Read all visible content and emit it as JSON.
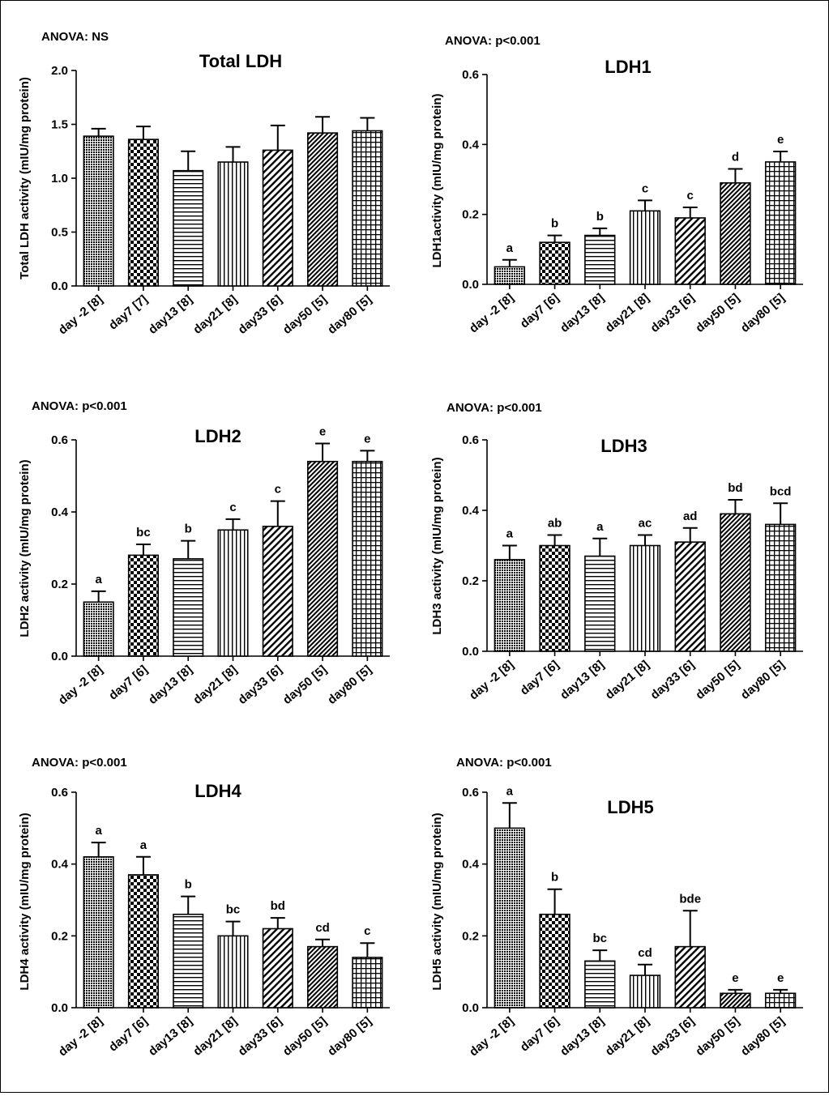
{
  "chart_data": [
    {
      "type": "bar",
      "title": "Total LDH",
      "annotation": "ANOVA: NS",
      "ylabel": "Total LDH activity (mIU/mg protein)",
      "ylim": [
        0,
        2.0
      ],
      "yticks": [
        "0.0",
        "0.5",
        "1.0",
        "1.5",
        "2.0"
      ],
      "categories": [
        "day -2 [8]",
        "day7 [7]",
        "day13 [8]",
        "day21 [8]",
        "day33 [6]",
        "day50 [5]",
        "day80 [5]"
      ],
      "values": [
        1.39,
        1.36,
        1.07,
        1.15,
        1.26,
        1.42,
        1.44
      ],
      "errors": [
        0.07,
        0.12,
        0.18,
        0.14,
        0.23,
        0.15,
        0.12
      ],
      "letters": [
        "",
        "",
        "",
        "",
        "",
        "",
        ""
      ]
    },
    {
      "type": "bar",
      "title": "LDH1",
      "annotation": "ANOVA: p<0.001",
      "ylabel": "LDH1activity (mIU/mg protein)",
      "ylim": [
        0,
        0.6
      ],
      "yticks": [
        "0.0",
        "0.2",
        "0.4",
        "0.6"
      ],
      "categories": [
        "day -2 [8]",
        "day7 [6]",
        "day13 [8]",
        "day21 [8]",
        "day33 [6]",
        "day50 [5]",
        "day80 [5]"
      ],
      "values": [
        0.05,
        0.12,
        0.14,
        0.21,
        0.19,
        0.29,
        0.35
      ],
      "errors": [
        0.02,
        0.02,
        0.02,
        0.03,
        0.03,
        0.04,
        0.03
      ],
      "letters": [
        "a",
        "b",
        "b",
        "c",
        "c",
        "d",
        "e"
      ]
    },
    {
      "type": "bar",
      "title": "LDH2",
      "annotation": "ANOVA: p<0.001",
      "ylabel": "LDH2 activity (mIU/mg protein)",
      "ylim": [
        0,
        0.6
      ],
      "yticks": [
        "0.0",
        "0.2",
        "0.4",
        "0.6"
      ],
      "categories": [
        "day -2 [8]",
        "day7 [6]",
        "day13 [8]",
        "day21 [8]",
        "day33 [6]",
        "day50 [5]",
        "day80 [5]"
      ],
      "values": [
        0.15,
        0.28,
        0.27,
        0.35,
        0.36,
        0.54,
        0.54
      ],
      "errors": [
        0.03,
        0.03,
        0.05,
        0.03,
        0.07,
        0.05,
        0.03
      ],
      "letters": [
        "a",
        "bc",
        "b",
        "c",
        "c",
        "e",
        "e"
      ]
    },
    {
      "type": "bar",
      "title": "LDH3",
      "annotation": "ANOVA: p<0.001",
      "ylabel": "LDH3 activity (mIU/mg protein)",
      "ylim": [
        0,
        0.6
      ],
      "yticks": [
        "0.0",
        "0.2",
        "0.4",
        "0.6"
      ],
      "categories": [
        "day -2 [8]",
        "day7 [6]",
        "day13 [8]",
        "day21 [8]",
        "day33 [6]",
        "day50 [5]",
        "day80 [5]"
      ],
      "values": [
        0.26,
        0.3,
        0.27,
        0.3,
        0.31,
        0.39,
        0.36
      ],
      "errors": [
        0.04,
        0.03,
        0.05,
        0.03,
        0.04,
        0.04,
        0.06
      ],
      "letters": [
        "a",
        "ab",
        "a",
        "ac",
        "ad",
        "bd",
        "bcd"
      ]
    },
    {
      "type": "bar",
      "title": "LDH4",
      "annotation": "ANOVA: p<0.001",
      "ylabel": "LDH4 activity (mIU/mg protein)",
      "ylim": [
        0,
        0.6
      ],
      "yticks": [
        "0.0",
        "0.2",
        "0.4",
        "0.6"
      ],
      "categories": [
        "day -2 [8]",
        "day7 [6]",
        "day13 [8]",
        "day21 [8]",
        "day33 [6]",
        "day50 [5]",
        "day80 [5]"
      ],
      "values": [
        0.42,
        0.37,
        0.26,
        0.2,
        0.22,
        0.17,
        0.14
      ],
      "errors": [
        0.04,
        0.05,
        0.05,
        0.04,
        0.03,
        0.02,
        0.04
      ],
      "letters": [
        "a",
        "a",
        "b",
        "bc",
        "bd",
        "cd",
        "c"
      ]
    },
    {
      "type": "bar",
      "title": "LDH5",
      "annotation": "ANOVA: p<0.001",
      "ylabel": "LDH5 activity (mIU/mg protein)",
      "ylim": [
        0,
        0.6
      ],
      "yticks": [
        "0.0",
        "0.2",
        "0.4",
        "0.6"
      ],
      "categories": [
        "day -2 [8]",
        "day7 [6]",
        "day13 [8]",
        "day21 [8]",
        "day33 [6]",
        "day50 [5]",
        "day80 [5]"
      ],
      "values": [
        0.5,
        0.26,
        0.13,
        0.09,
        0.17,
        0.04,
        0.04
      ],
      "errors": [
        0.07,
        0.07,
        0.03,
        0.03,
        0.1,
        0.01,
        0.01
      ],
      "letters": [
        "a",
        "b",
        "bc",
        "cd",
        "bde",
        "e",
        "e"
      ]
    }
  ],
  "pattern_names": [
    "dense-dots",
    "checker",
    "horizontal-lines",
    "vertical-lines",
    "diagonal-lines",
    "dense-diagonal",
    "grid"
  ]
}
